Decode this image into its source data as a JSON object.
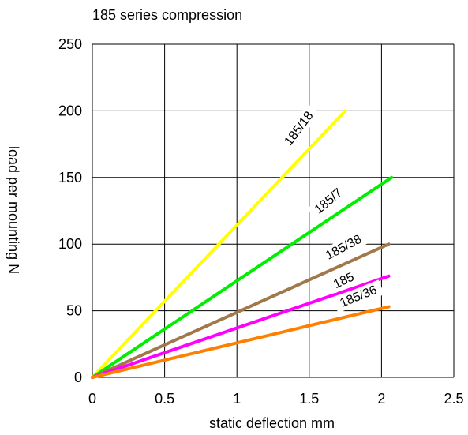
{
  "chart_data": {
    "type": "line",
    "title": "185 series compression",
    "xlabel": "static deflection mm",
    "ylabel": "load per mounting N",
    "xlim": [
      0,
      2.5
    ],
    "ylim": [
      0,
      250
    ],
    "xticks": [
      "0",
      "0.5",
      "1",
      "1.5",
      "2",
      "2.5"
    ],
    "yticks": [
      "0",
      "50",
      "100",
      "150",
      "200",
      "250"
    ],
    "grid": true,
    "series": [
      {
        "name": "185/18",
        "color": "#ffff00",
        "x": [
          0,
          1.75
        ],
        "y": [
          0,
          200
        ],
        "label_at": [
          1.45,
          185
        ],
        "label_angle": -53
      },
      {
        "name": "185/7",
        "color": "#00ee00",
        "x": [
          0,
          2.07
        ],
        "y": [
          0,
          150
        ],
        "label_at": [
          1.65,
          130
        ],
        "label_angle": -40
      },
      {
        "name": "185/38",
        "color": "#a0784a",
        "x": [
          0,
          2.05
        ],
        "y": [
          0,
          100
        ],
        "label_at": [
          1.75,
          95
        ],
        "label_angle": -28
      },
      {
        "name": "185",
        "color": "#ff00ff",
        "x": [
          0,
          2.05
        ],
        "y": [
          0,
          76
        ],
        "label_at": [
          1.75,
          70
        ],
        "label_angle": -25
      },
      {
        "name": "185/36",
        "color": "#ff7f00",
        "x": [
          0,
          2.05
        ],
        "y": [
          0,
          53
        ],
        "label_at": [
          1.85,
          58
        ],
        "label_angle": -22
      }
    ]
  }
}
